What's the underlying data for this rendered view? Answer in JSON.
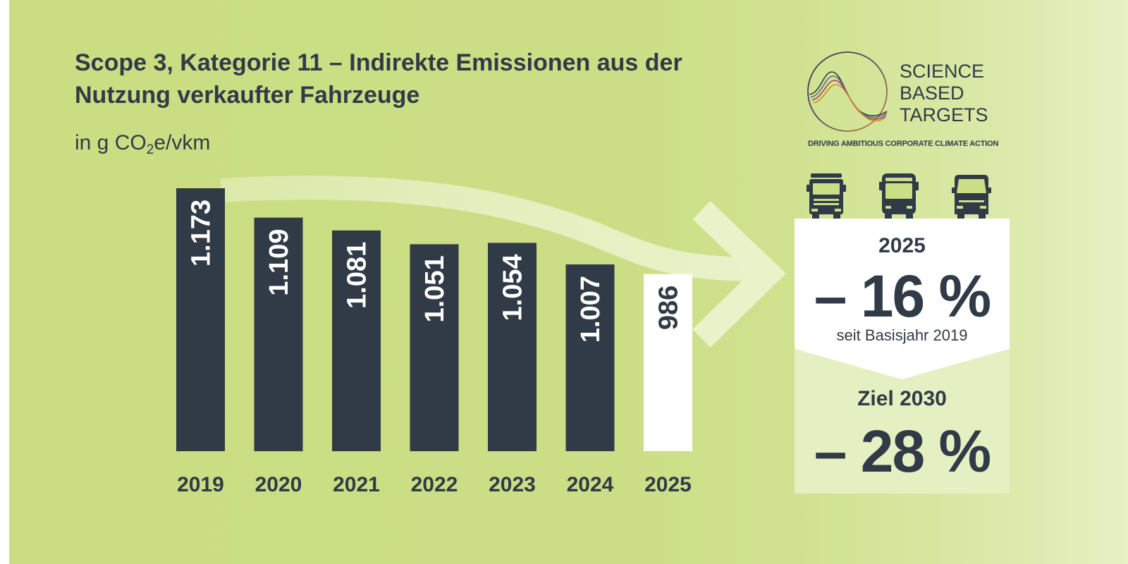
{
  "title": "Scope 3, Kategorie 11 – Indirekte Emissionen aus der Nutzung verkaufter Fahrzeuge",
  "unit": {
    "prefix": "in g CO",
    "sub": "2",
    "suffix": "e/vkm"
  },
  "chart_data": {
    "type": "bar",
    "title": "Scope 3, Kategorie 11 – Indirekte Emissionen aus der Nutzung verkaufter Fahrzeuge",
    "subtitle": "in g CO2e/vkm",
    "categories": [
      "2019",
      "2020",
      "2021",
      "2022",
      "2023",
      "2024",
      "2025"
    ],
    "values": [
      1173,
      1109,
      1081,
      1051,
      1054,
      1007,
      986
    ],
    "value_labels": [
      "1.173",
      "1.109",
      "1.081",
      "1.051",
      "1.054",
      "1.007",
      "986"
    ],
    "ylim": [
      600,
      1200
    ],
    "highlight_category": "2025",
    "grid": false,
    "legend": "none",
    "colors": {
      "bar": "#303b47",
      "highlight": "#ffffff"
    }
  },
  "logo": {
    "lines": [
      "SCIENCE",
      "BASED",
      "TARGETS"
    ],
    "tagline": "DRIVING AMBITIOUS CORPORATE CLIMATE ACTION"
  },
  "vehicles": [
    "truck-icon",
    "bus-icon",
    "van-icon"
  ],
  "panel": {
    "year": "2025",
    "reduction": "– 16 %",
    "since": "seit Basisjahr 2019",
    "goal_label": "Ziel 2030",
    "goal": "– 28 %"
  },
  "colors": {
    "background": "#cadd82",
    "dark": "#303b47",
    "panel_top": "#ffffff",
    "panel_bottom": "#e5f0c2"
  }
}
